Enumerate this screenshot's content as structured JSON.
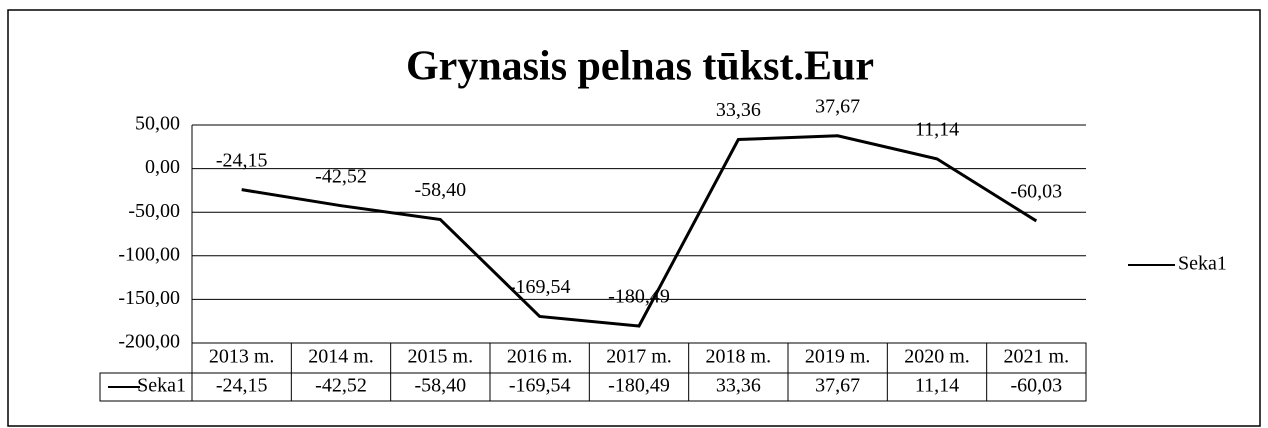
{
  "chart_data": {
    "type": "line",
    "title": "Grynasis pelnas tūkst.Eur",
    "categories": [
      "2013 m.",
      "2014 m.",
      "2015 m.",
      "2016 m.",
      "2017 m.",
      "2018 m.",
      "2019 m.",
      "2020 m.",
      "2021 m."
    ],
    "series": [
      {
        "name": "Seka1",
        "color": "#000000",
        "values": [
          -24.15,
          -42.52,
          -58.4,
          -169.54,
          -180.49,
          33.36,
          37.67,
          11.14,
          -60.03
        ],
        "value_labels": [
          "-24,15",
          "-42,52",
          "-58,40",
          "-169,54",
          "-180,49",
          "33,36",
          "37,67",
          "11,14",
          "-60,03"
        ]
      }
    ],
    "ylim": [
      -200,
      50
    ],
    "yticks": [
      {
        "value": -200,
        "label": "-200,00"
      },
      {
        "value": -150,
        "label": "-150,00"
      },
      {
        "value": -100,
        "label": "-100,00"
      },
      {
        "value": -50,
        "label": "-50,00"
      },
      {
        "value": 0,
        "label": "0,00"
      },
      {
        "value": 50,
        "label": "50,00"
      }
    ],
    "grid": true,
    "legend": "right",
    "data_table": true
  }
}
